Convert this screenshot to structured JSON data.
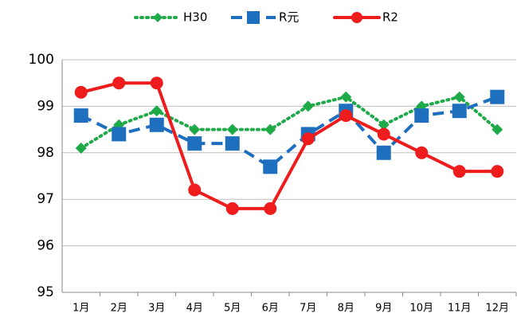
{
  "chart_data": {
    "type": "line",
    "categories": [
      "1月",
      "2月",
      "3月",
      "4月",
      "5月",
      "6月",
      "7月",
      "8月",
      "9月",
      "10月",
      "11月",
      "12月"
    ],
    "series": [
      {
        "name": "H30",
        "color": "#1faa4a",
        "values": [
          98.1,
          98.6,
          98.9,
          98.5,
          98.5,
          98.5,
          99.0,
          99.2,
          98.6,
          99.0,
          99.2,
          98.5
        ]
      },
      {
        "name": "R元",
        "color": "#1f6fbf",
        "values": [
          98.8,
          98.4,
          98.6,
          98.2,
          98.2,
          97.7,
          98.4,
          98.9,
          98.0,
          98.8,
          98.9,
          99.2
        ]
      },
      {
        "name": "R2",
        "color": "#ee1c1c",
        "values": [
          99.3,
          99.5,
          99.5,
          97.2,
          96.8,
          96.8,
          98.3,
          98.8,
          98.4,
          98.0,
          97.6,
          97.6
        ]
      }
    ],
    "ylim": [
      95,
      100
    ],
    "yticks": [
      95,
      96,
      97,
      98,
      99,
      100
    ],
    "grid": true
  }
}
